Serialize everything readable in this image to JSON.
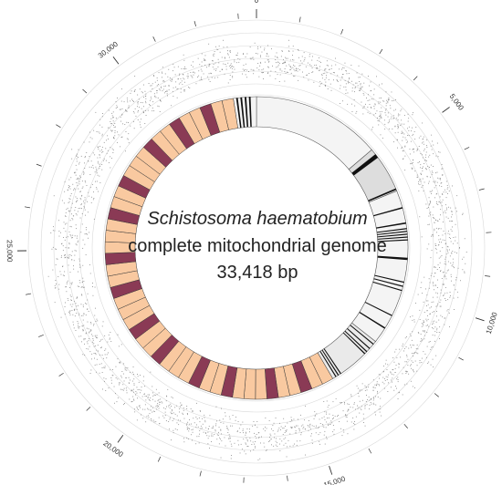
{
  "center": {
    "line1": "Schistosoma haematobium",
    "line2": "complete mitochondrial genome",
    "line3": "33,418 bp"
  },
  "genome_length": 33418,
  "scale": {
    "labels": [
      {
        "pos": 0,
        "text": "0"
      },
      {
        "pos": 5000,
        "text": "5,000"
      },
      {
        "pos": 10000,
        "text": "10,000"
      },
      {
        "pos": 15000,
        "text": "15,000"
      },
      {
        "pos": 20000,
        "text": "20,000"
      },
      {
        "pos": 25000,
        "text": "25,000"
      },
      {
        "pos": 30000,
        "text": "30,000"
      }
    ]
  },
  "colors": {
    "repeat_a": "#f9c9a0",
    "repeat_b": "#8a3a55",
    "coding_region": "#eeeeee",
    "feature_bar": "#111111",
    "scatter": "#8a8a8a",
    "guide_circle": "#d8d8d8",
    "tick": "#333333"
  },
  "tracks": {
    "coding_blocks": [
      {
        "start": 0,
        "end": 4600,
        "fill": "#f4f4f4"
      },
      {
        "start": 4600,
        "end": 6300,
        "fill": "#dddddd"
      },
      {
        "start": 6300,
        "end": 11900,
        "fill": "#f4f4f4"
      },
      {
        "start": 11900,
        "end": 13900,
        "fill": "#eaeaea"
      }
    ],
    "feature_bars": [
      {
        "start": 4800,
        "end": 4950
      },
      {
        "start": 6200,
        "end": 6260
      },
      {
        "start": 6900,
        "end": 6950
      },
      {
        "start": 7450,
        "end": 7500
      },
      {
        "start": 7650,
        "end": 7690
      },
      {
        "start": 7750,
        "end": 7790
      },
      {
        "start": 7850,
        "end": 7890
      },
      {
        "start": 7950,
        "end": 7990
      },
      {
        "start": 8050,
        "end": 8090
      },
      {
        "start": 8700,
        "end": 8780
      },
      {
        "start": 9550,
        "end": 9590
      },
      {
        "start": 9700,
        "end": 9740
      },
      {
        "start": 9850,
        "end": 9890
      },
      {
        "start": 10800,
        "end": 10840
      },
      {
        "start": 11300,
        "end": 11350
      },
      {
        "start": 12000,
        "end": 12040
      },
      {
        "start": 12200,
        "end": 12240
      },
      {
        "start": 12350,
        "end": 12390
      },
      {
        "start": 12450,
        "end": 12490
      },
      {
        "start": 13550,
        "end": 13590
      },
      {
        "start": 13650,
        "end": 13690
      },
      {
        "start": 13750,
        "end": 13790
      },
      {
        "start": 32700,
        "end": 32760
      },
      {
        "start": 32850,
        "end": 32910
      },
      {
        "start": 33000,
        "end": 33060
      },
      {
        "start": 33150,
        "end": 33210
      }
    ],
    "repeat_region": {
      "start": 13900,
      "end": 32600
    },
    "repeat_pattern": [
      "a",
      "a",
      "b",
      "a",
      "a",
      "b",
      "a",
      "a",
      "a",
      "b",
      "a",
      "a",
      "b",
      "a",
      "a",
      "a",
      "b",
      "a",
      "a",
      "b",
      "a",
      "a",
      "a",
      "b",
      "a",
      "a",
      "b",
      "a",
      "a",
      "a",
      "b",
      "a",
      "a",
      "b",
      "a",
      "a",
      "a",
      "b",
      "a",
      "a",
      "b",
      "a",
      "a",
      "b",
      "a",
      "a"
    ]
  }
}
